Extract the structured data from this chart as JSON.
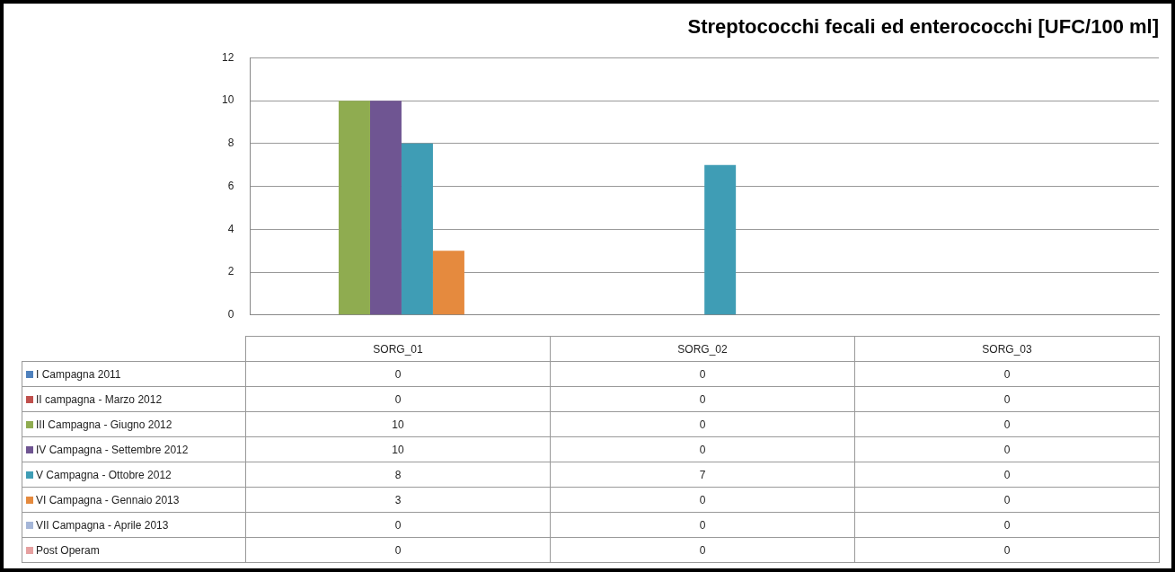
{
  "chart_data": {
    "type": "bar",
    "title": "Streptococchi fecali ed enterococchi [UFC/100 ml]",
    "categories": [
      "SORG_01",
      "SORG_02",
      "SORG_03"
    ],
    "series": [
      {
        "name": "I Campagna 2011",
        "color": "#4f81bd",
        "values": [
          0,
          0,
          0
        ]
      },
      {
        "name": "II campagna  - Marzo 2012",
        "color": "#c0504d",
        "values": [
          0,
          0,
          0
        ]
      },
      {
        "name": "III Campagna - Giugno 2012",
        "color": "#8fac50",
        "values": [
          10,
          0,
          0
        ]
      },
      {
        "name": "IV Campagna - Settembre 2012",
        "color": "#6f5592",
        "values": [
          10,
          0,
          0
        ]
      },
      {
        "name": "V Campagna - Ottobre  2012",
        "color": "#3f9db5",
        "values": [
          8,
          7,
          0
        ]
      },
      {
        "name": "VI Campagna - Gennaio 2013",
        "color": "#e58a3e",
        "values": [
          3,
          0,
          0
        ]
      },
      {
        "name": "VII Campagna  - Aprile  2013",
        "color": "#a5b6d8",
        "values": [
          0,
          0,
          0
        ]
      },
      {
        "name": "Post Operam",
        "color": "#e6a0a0",
        "values": [
          0,
          0,
          0
        ]
      }
    ],
    "ylim": [
      0,
      12
    ],
    "yticks": [
      0,
      2,
      4,
      6,
      8,
      10,
      12
    ],
    "grid": "y",
    "legend": "bottom left",
    "data_labels": true
  }
}
